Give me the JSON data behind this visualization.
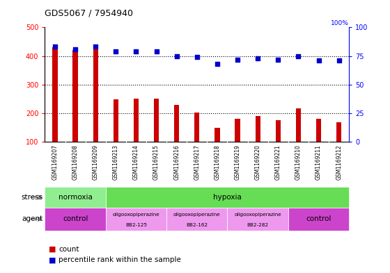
{
  "title": "GDS5067 / 7954940",
  "samples": [
    "GSM1169207",
    "GSM1169208",
    "GSM1169209",
    "GSM1169213",
    "GSM1169214",
    "GSM1169215",
    "GSM1169216",
    "GSM1169217",
    "GSM1169218",
    "GSM1169219",
    "GSM1169220",
    "GSM1169221",
    "GSM1169210",
    "GSM1169211",
    "GSM1169212"
  ],
  "counts": [
    430,
    420,
    440,
    248,
    250,
    252,
    230,
    202,
    150,
    180,
    190,
    175,
    218,
    180,
    168
  ],
  "percentiles": [
    83,
    81,
    83,
    79,
    79,
    79,
    75,
    74,
    68,
    72,
    73,
    72,
    75,
    71,
    71
  ],
  "bar_color": "#cc0000",
  "dot_color": "#0000cc",
  "ylim_left": [
    100,
    500
  ],
  "ylim_right": [
    0,
    100
  ],
  "yticks_left": [
    100,
    200,
    300,
    400,
    500
  ],
  "yticks_right": [
    0,
    25,
    50,
    75,
    100
  ],
  "stress_labels": [
    {
      "text": "normoxia",
      "start": 0,
      "end": 3,
      "color": "#90ee90"
    },
    {
      "text": "hypoxia",
      "start": 3,
      "end": 15,
      "color": "#66dd55"
    }
  ],
  "agent_labels": [
    {
      "text": "control",
      "start": 0,
      "end": 3,
      "color": "#cc44cc"
    },
    {
      "text": "oligooxopiperazine\nBB2-125",
      "start": 3,
      "end": 6,
      "color": "#ee99ee"
    },
    {
      "text": "oligooxopiperazine\nBB2-162",
      "start": 6,
      "end": 9,
      "color": "#ee99ee"
    },
    {
      "text": "oligooxopiperazine\nBB2-282",
      "start": 9,
      "end": 12,
      "color": "#ee99ee"
    },
    {
      "text": "control",
      "start": 12,
      "end": 15,
      "color": "#cc44cc"
    }
  ],
  "legend_count_color": "#cc0000",
  "legend_dot_color": "#0000cc",
  "bg_color": "#ffffff",
  "tick_area_color": "#cccccc",
  "chart_bg": "#ffffff"
}
